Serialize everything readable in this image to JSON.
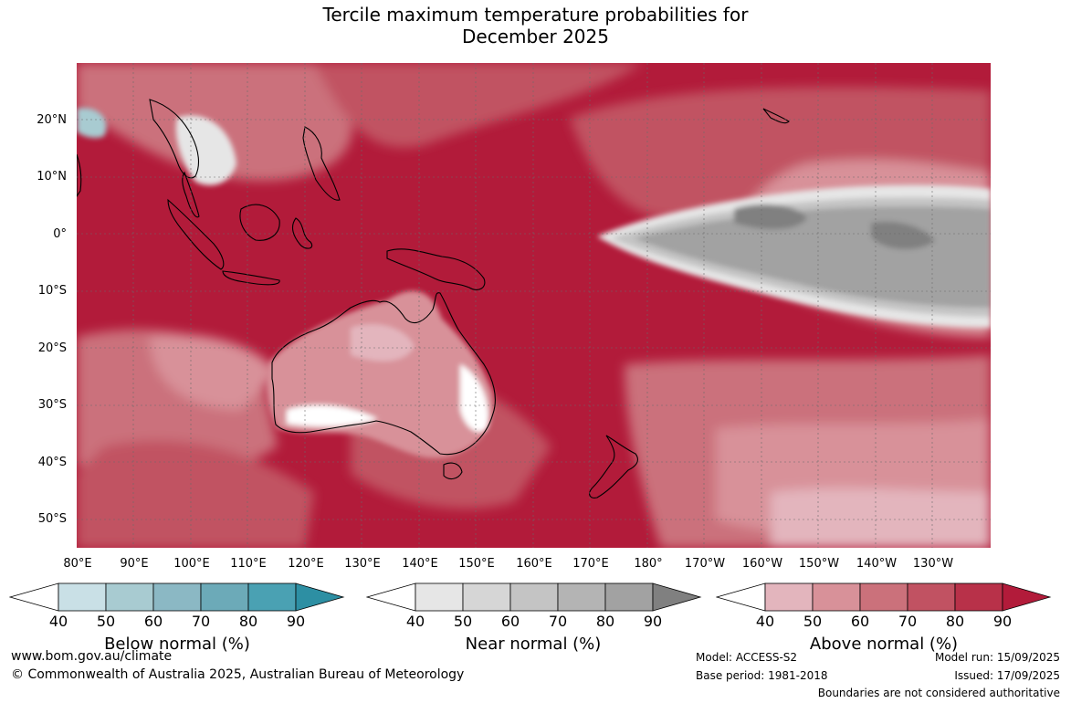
{
  "title": {
    "line1": "Tercile maximum temperature probabilities for",
    "line2": "December 2025"
  },
  "lat_labels": [
    "20°N",
    "10°N",
    "0°",
    "10°S",
    "20°S",
    "30°S",
    "40°S",
    "50°S"
  ],
  "lon_labels": [
    "80°E",
    "90°E",
    "100°E",
    "110°E",
    "120°E",
    "130°E",
    "140°E",
    "150°E",
    "160°E",
    "170°E",
    "180°",
    "170°W",
    "160°W",
    "150°W",
    "140°W",
    "130°W"
  ],
  "colorbars": [
    {
      "caption": "Below normal (%)",
      "ticks": [
        "40",
        "50",
        "60",
        "70",
        "80",
        "90"
      ],
      "colors": [
        "#ffffff",
        "#c9e0e6",
        "#a8cbd1",
        "#8bb8c4",
        "#6caab8",
        "#4aa1b3",
        "#2d8fa3"
      ]
    },
    {
      "caption": "Near normal (%)",
      "ticks": [
        "40",
        "50",
        "60",
        "70",
        "80",
        "90"
      ],
      "colors": [
        "#ffffff",
        "#e6e6e6",
        "#d6d6d6",
        "#c4c4c4",
        "#b4b4b4",
        "#a2a2a2",
        "#808080"
      ]
    },
    {
      "caption": "Above normal (%)",
      "ticks": [
        "40",
        "50",
        "60",
        "70",
        "80",
        "90"
      ],
      "colors": [
        "#ffffff",
        "#e3b5bd",
        "#d89199",
        "#cb717b",
        "#c15262",
        "#b83149",
        "#b21b3a"
      ]
    }
  ],
  "footer": {
    "website": "www.bom.gov.au/climate",
    "copyright": "© Commonwealth of Australia 2025, Australian Bureau of Meteorology",
    "model": "Model: ACCESS-S2",
    "base_period": "Base period: 1981-2018",
    "model_run": "Model run: 15/09/2025",
    "issued": "Issued: 17/09/2025",
    "disclaimer": "Boundaries are not considered authoritative"
  }
}
